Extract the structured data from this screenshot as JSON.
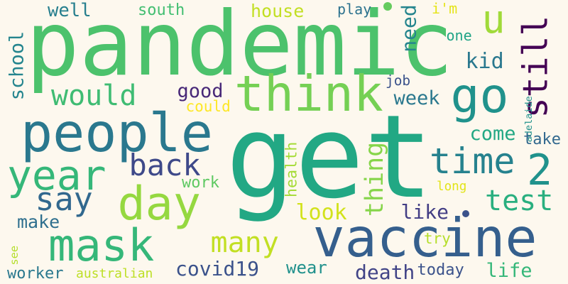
{
  "words": [
    {
      "text": "pandemic",
      "color": "#4cc26c"
    },
    {
      "text": "get",
      "color": "#22a884"
    },
    {
      "text": "vaccine",
      "color": "#355f8d"
    },
    {
      "text": "people",
      "color": "#2a788e"
    },
    {
      "text": "think",
      "color": "#75d054"
    },
    {
      "text": "mask",
      "color": "#35b779"
    },
    {
      "text": "day",
      "color": "#95d840"
    },
    {
      "text": "go",
      "color": "#20928c"
    },
    {
      "text": "year",
      "color": "#35b779"
    },
    {
      "text": "time",
      "color": "#26828e"
    },
    {
      "text": "still",
      "color": "#440154"
    },
    {
      "text": "u",
      "color": "#a0da39"
    },
    {
      "text": "would",
      "color": "#3fbc73"
    },
    {
      "text": "back",
      "color": "#3e4989"
    },
    {
      "text": "say",
      "color": "#31688e"
    },
    {
      "text": "test",
      "color": "#29af7f"
    },
    {
      "text": "many",
      "color": "#c2df23"
    },
    {
      "text": "2",
      "color": "#20928c"
    },
    {
      "text": "good",
      "color": "#482878"
    },
    {
      "text": "school",
      "color": "#25858e"
    },
    {
      "text": "thing",
      "color": "#86d549"
    },
    {
      "text": "kid",
      "color": "#2a788e"
    },
    {
      "text": "week",
      "color": "#2a788e"
    },
    {
      "text": "come",
      "color": "#22a884"
    },
    {
      "text": "house",
      "color": "#c2df23"
    },
    {
      "text": "well",
      "color": "#277f8e"
    },
    {
      "text": "need",
      "color": "#25858e"
    },
    {
      "text": "look",
      "color": "#d2e21b"
    },
    {
      "text": "like",
      "color": "#433e85"
    },
    {
      "text": "make",
      "color": "#2e6f8e"
    },
    {
      "text": "covid19",
      "color": "#3b528b"
    },
    {
      "text": "wear",
      "color": "#21918c"
    },
    {
      "text": "death",
      "color": "#414487"
    },
    {
      "text": "life",
      "color": "#35b779"
    },
    {
      "text": "today",
      "color": "#3b528b"
    },
    {
      "text": "south",
      "color": "#42be71"
    },
    {
      "text": "play",
      "color": "#2c728e"
    },
    {
      "text": "i'm",
      "color": "#e5e419"
    },
    {
      "text": "one",
      "color": "#20a486"
    },
    {
      "text": "job",
      "color": "#3b528b"
    },
    {
      "text": "could",
      "color": "#fde725"
    },
    {
      "text": "adelaide",
      "color": "#21918c"
    },
    {
      "text": "take",
      "color": "#31688e"
    },
    {
      "text": "health",
      "color": "#a5db36"
    },
    {
      "text": "work",
      "color": "#5ec962"
    },
    {
      "text": "long",
      "color": "#e2e418"
    },
    {
      "text": "see",
      "color": "#b5de2b"
    },
    {
      "text": "try",
      "color": "#b5de2b"
    },
    {
      "text": "worker",
      "color": "#2a788e"
    },
    {
      "text": "australian",
      "color": "#bddf26"
    }
  ],
  "dots": [
    {
      "color": "#65cb5e"
    },
    {
      "color": "#3b528b"
    }
  ]
}
